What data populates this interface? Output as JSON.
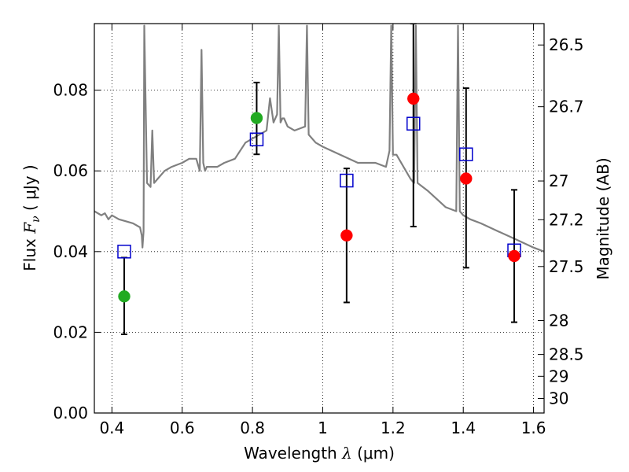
{
  "chart_data": {
    "type": "scatter",
    "xlabel": {
      "pre": "Wavelength  ",
      "sym": "λ",
      "unit": " (μm)"
    },
    "ylabel": {
      "pre": "Flux  ",
      "sym": "F",
      "sub": "ν",
      "unit": "  ( μJy )"
    },
    "ylabel_right": "Magnitude (AB)",
    "xlim": [
      0.35,
      1.63
    ],
    "ylim": [
      0.0,
      0.0965
    ],
    "x_ticks": [
      0.4,
      0.6,
      0.8,
      1.0,
      1.2,
      1.4,
      1.6
    ],
    "x_tick_labels": [
      "0.4",
      "0.6",
      "0.8",
      "1",
      "1.2",
      "1.4",
      "1.6"
    ],
    "y_ticks": [
      0.0,
      0.02,
      0.04,
      0.06,
      0.08
    ],
    "y_tick_labels": [
      "0.00",
      "0.02",
      "0.04",
      "0.06",
      "0.08"
    ],
    "right_ticks": [
      {
        "label": "26.5",
        "flux": 0.0912
      },
      {
        "label": "26.7",
        "flux": 0.0759
      },
      {
        "label": "27",
        "flux": 0.0575
      },
      {
        "label": "27.2",
        "flux": 0.0479
      },
      {
        "label": "27.5",
        "flux": 0.0363
      },
      {
        "label": "28",
        "flux": 0.0229
      },
      {
        "label": "28.5",
        "flux": 0.0145
      },
      {
        "label": "29",
        "flux": 0.0091
      },
      {
        "label": "30",
        "flux": 0.0036
      }
    ],
    "grid": true,
    "colors": {
      "spectrum": "#808080",
      "observed": "#ff0000",
      "observed_alt": "#22aa22",
      "model": "#0000cc",
      "errorbar": "#000000"
    },
    "series": [
      {
        "kind": "line",
        "x": [
          0.35,
          0.37,
          0.38,
          0.39,
          0.4,
          0.42,
          0.44,
          0.46,
          0.48,
          0.485,
          0.487,
          0.49,
          0.492,
          0.5,
          0.51,
          0.515,
          0.52,
          0.53,
          0.55,
          0.57,
          0.6,
          0.62,
          0.64,
          0.65,
          0.655,
          0.66,
          0.665,
          0.67,
          0.7,
          0.72,
          0.75,
          0.78,
          0.8,
          0.82,
          0.84,
          0.85,
          0.86,
          0.87,
          0.875,
          0.88,
          0.885,
          0.89,
          0.9,
          0.92,
          0.95,
          0.955,
          0.96,
          0.98,
          1.0,
          1.05,
          1.1,
          1.15,
          1.18,
          1.19,
          1.195,
          1.2,
          1.21,
          1.25,
          1.26,
          1.265,
          1.27,
          1.3,
          1.35,
          1.38,
          1.385,
          1.39,
          1.4,
          1.42,
          1.45,
          1.5,
          1.55,
          1.6,
          1.63
        ],
        "y": [
          0.05,
          0.049,
          0.0495,
          0.048,
          0.049,
          0.048,
          0.0475,
          0.047,
          0.046,
          0.044,
          0.041,
          0.045,
          0.096,
          0.057,
          0.056,
          0.07,
          0.057,
          0.058,
          0.06,
          0.061,
          0.062,
          0.063,
          0.063,
          0.06,
          0.09,
          0.062,
          0.06,
          0.061,
          0.061,
          0.062,
          0.063,
          0.067,
          0.068,
          0.069,
          0.07,
          0.078,
          0.072,
          0.074,
          0.096,
          0.072,
          0.073,
          0.073,
          0.071,
          0.07,
          0.071,
          0.096,
          0.069,
          0.067,
          0.066,
          0.064,
          0.062,
          0.062,
          0.061,
          0.065,
          0.096,
          0.064,
          0.064,
          0.058,
          0.057,
          0.096,
          0.057,
          0.055,
          0.051,
          0.05,
          0.096,
          0.05,
          0.049,
          0.048,
          0.047,
          0.045,
          0.043,
          0.041,
          0.04
        ]
      },
      {
        "kind": "errorbar",
        "points": [
          {
            "x": 0.435,
            "y": 0.0289,
            "ylo": 0.0195,
            "yhi": 0.0385,
            "color": "observed_alt"
          },
          {
            "x": 0.812,
            "y": 0.0731,
            "ylo": 0.0641,
            "yhi": 0.0819,
            "color": "observed_alt"
          },
          {
            "x": 1.068,
            "y": 0.044,
            "ylo": 0.0274,
            "yhi": 0.0606,
            "color": "observed"
          },
          {
            "x": 1.258,
            "y": 0.0779,
            "ylo": 0.0462,
            "yhi": 0.0965,
            "color": "observed"
          },
          {
            "x": 1.408,
            "y": 0.0581,
            "ylo": 0.036,
            "yhi": 0.0805,
            "color": "observed"
          },
          {
            "x": 1.545,
            "y": 0.0389,
            "ylo": 0.0225,
            "yhi": 0.0553,
            "color": "observed"
          }
        ]
      },
      {
        "kind": "model",
        "points": [
          {
            "x": 0.435,
            "y": 0.04
          },
          {
            "x": 0.812,
            "y": 0.0678
          },
          {
            "x": 1.068,
            "y": 0.0576
          },
          {
            "x": 1.258,
            "y": 0.0717
          },
          {
            "x": 1.408,
            "y": 0.0641
          },
          {
            "x": 1.545,
            "y": 0.0403
          }
        ]
      }
    ]
  }
}
